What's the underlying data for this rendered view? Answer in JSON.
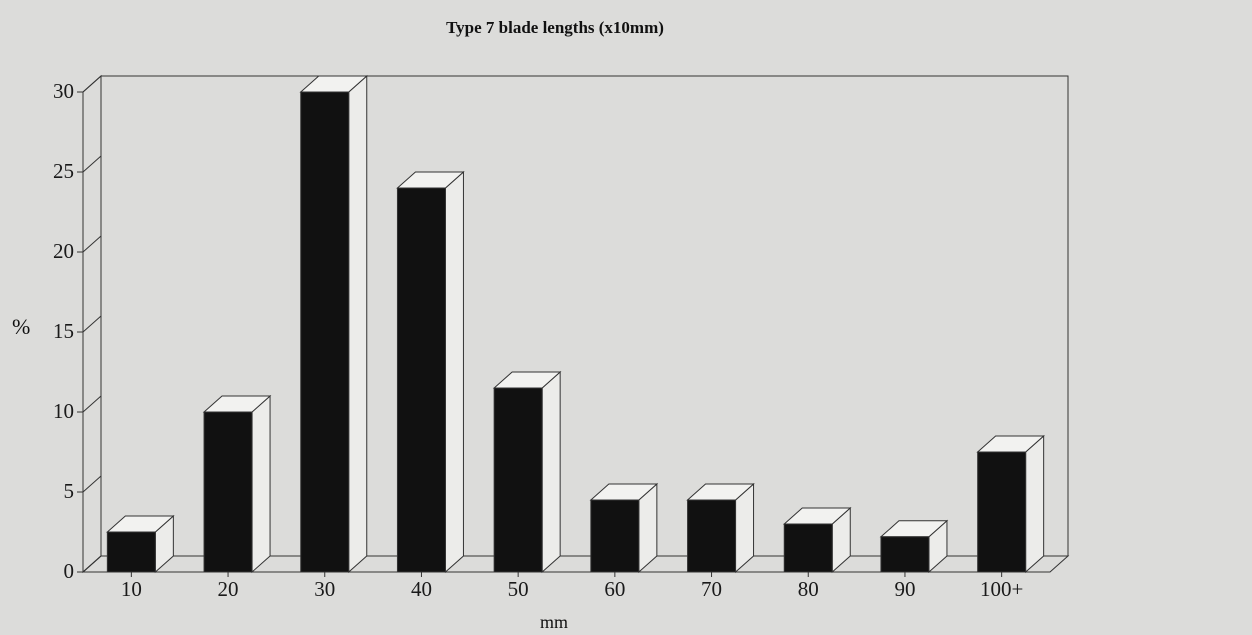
{
  "chart_data": {
    "type": "bar",
    "title": "Type 7 blade lengths (x10mm)",
    "xlabel": "mm",
    "ylabel": "%",
    "categories": [
      "10",
      "20",
      "30",
      "40",
      "50",
      "60",
      "70",
      "80",
      "90",
      "100+"
    ],
    "values": [
      2.5,
      10,
      30,
      24,
      11.5,
      4.5,
      4.5,
      3,
      2.2,
      7.5
    ],
    "ylim": [
      0,
      30
    ],
    "yticks": [
      "0",
      "5",
      "10",
      "15",
      "20",
      "25",
      "30"
    ],
    "style": "3d",
    "grid": false,
    "legend": "none",
    "colors": {
      "bar": "#111111",
      "bar_side": "#ececea",
      "bar_top": "#f2f2f0",
      "frame": "#333333"
    }
  }
}
